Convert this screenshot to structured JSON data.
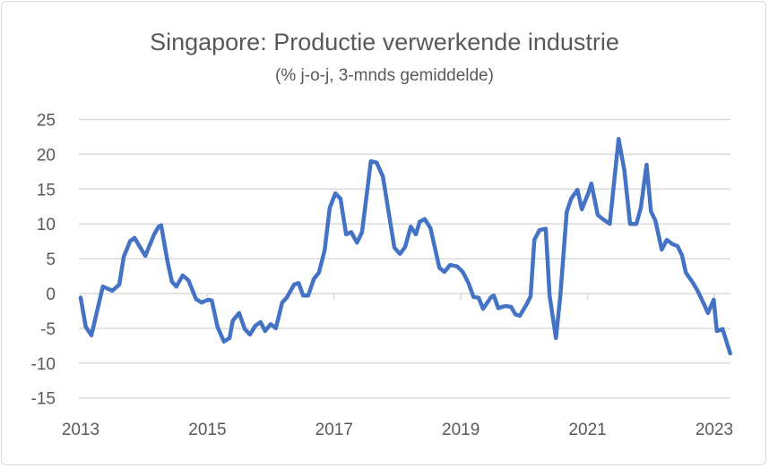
{
  "chart_data": {
    "type": "line",
    "title": "Singapore: Productie verwerkende industrie",
    "subtitle": "(% j-o-j, 3-mnds gemiddelde)",
    "xlabel": "",
    "ylabel": "",
    "ylim": [
      -15,
      25
    ],
    "xlim": [
      2013,
      2023.3
    ],
    "yticks": [
      25,
      20,
      15,
      10,
      5,
      0,
      -5,
      -10,
      -15
    ],
    "xticks": [
      2013,
      2015,
      2017,
      2019,
      2021,
      2023
    ],
    "grid": true,
    "color": "#4472c4",
    "series": [
      {
        "name": "Productie verwerkende industrie",
        "x": [
          2013.0,
          2013.08,
          2013.17,
          2013.35,
          2013.5,
          2013.61,
          2013.68,
          2013.78,
          2013.85,
          2014.02,
          2014.16,
          2014.23,
          2014.27,
          2014.37,
          2014.44,
          2014.51,
          2014.61,
          2014.7,
          2014.82,
          2014.91,
          2015.01,
          2015.07,
          2015.16,
          2015.26,
          2015.35,
          2015.4,
          2015.5,
          2015.59,
          2015.67,
          2015.76,
          2015.84,
          2015.91,
          2016.0,
          2016.08,
          2016.18,
          2016.25,
          2016.37,
          2016.44,
          2016.51,
          2016.59,
          2016.68,
          2016.76,
          2016.85,
          2016.93,
          2017.02,
          2017.1,
          2017.19,
          2017.27,
          2017.36,
          2017.44,
          2017.58,
          2017.67,
          2017.77,
          2017.95,
          2018.04,
          2018.12,
          2018.21,
          2018.29,
          2018.35,
          2018.43,
          2018.52,
          2018.66,
          2018.74,
          2018.83,
          2018.94,
          2019.03,
          2019.12,
          2019.2,
          2019.28,
          2019.35,
          2019.48,
          2019.52,
          2019.59,
          2019.7,
          2019.79,
          2019.86,
          2019.93,
          2020.04,
          2020.1,
          2020.16,
          2020.24,
          2020.34,
          2020.4,
          2020.5,
          2020.57,
          2020.67,
          2020.74,
          2020.84,
          2020.91,
          2021.01,
          2021.06,
          2021.16,
          2021.24,
          2021.35,
          2021.49,
          2021.58,
          2021.67,
          2021.77,
          2021.84,
          2021.93,
          2022.0,
          2022.07,
          2022.17,
          2022.25,
          2022.34,
          2022.42,
          2022.49,
          2022.55,
          2022.65,
          2022.73,
          2022.82,
          2022.9,
          2022.99,
          2023.04,
          2023.13,
          2023.25
        ],
        "y": [
          -0.6,
          -4.8,
          -6.0,
          1.0,
          0.4,
          1.3,
          5.3,
          7.5,
          8.0,
          5.4,
          8.5,
          9.6,
          9.8,
          4.6,
          1.7,
          1.0,
          2.6,
          1.9,
          -0.8,
          -1.3,
          -0.9,
          -1.0,
          -4.8,
          -6.9,
          -6.4,
          -3.9,
          -2.8,
          -5.1,
          -5.9,
          -4.6,
          -4.1,
          -5.4,
          -4.4,
          -5.0,
          -1.3,
          -0.6,
          1.3,
          1.5,
          -0.3,
          -0.3,
          2.1,
          3.0,
          6.2,
          12.3,
          14.4,
          13.6,
          8.5,
          8.8,
          7.3,
          8.8,
          19.0,
          18.8,
          16.8,
          6.6,
          5.7,
          6.7,
          9.6,
          8.5,
          10.3,
          10.7,
          9.4,
          3.7,
          3.1,
          4.1,
          3.9,
          3.1,
          1.5,
          -0.5,
          -0.6,
          -2.2,
          -0.5,
          -0.3,
          -2.1,
          -1.8,
          -1.9,
          -3.0,
          -3.2,
          -1.5,
          -0.4,
          7.7,
          9.1,
          9.3,
          -0.3,
          -6.4,
          -0.3,
          11.7,
          13.6,
          14.9,
          12.1,
          14.4,
          15.8,
          11.3,
          10.7,
          10.0,
          22.2,
          17.7,
          10.0,
          10.0,
          12.3,
          18.5,
          11.8,
          10.5,
          6.3,
          7.7,
          7.1,
          6.8,
          5.5,
          3.0,
          1.7,
          0.5,
          -1.2,
          -2.8,
          -0.9,
          -5.4,
          -5.1,
          -8.6
        ]
      }
    ]
  }
}
